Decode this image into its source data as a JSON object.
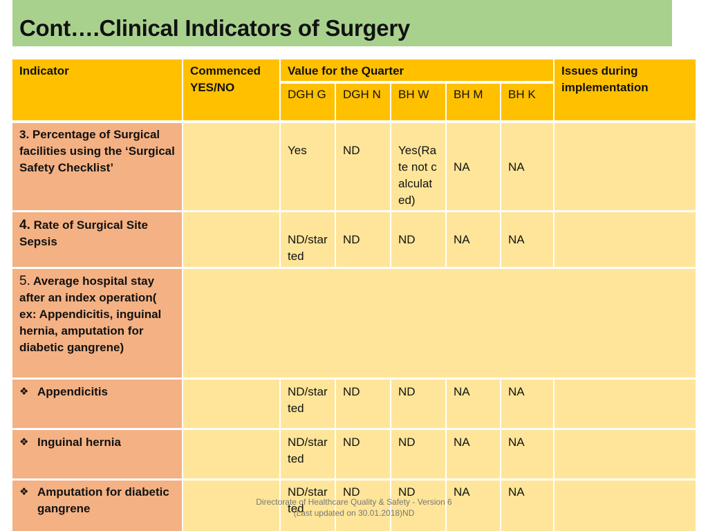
{
  "title": "Cont….Clinical Indicators of Surgery",
  "header": {
    "indicator": "Indicator",
    "commenced": "Commenced YES/NO",
    "value_quarter": "Value for the Quarter",
    "issues": "Issues during implementation",
    "sub_columns": [
      "DGH G",
      "DGH N",
      "BH W",
      "BH M",
      "BH K"
    ]
  },
  "rows": [
    {
      "num": "3.",
      "label": "Percentage of Surgical facilities using the ‘Surgical Safety Checklist’",
      "values": [
        "Yes",
        "ND",
        "Yes(Rate not calculated)",
        "NA",
        "NA"
      ]
    },
    {
      "num": "4.",
      "label": "Rate of Surgical Site Sepsis",
      "values": [
        "ND/started",
        "ND",
        "ND",
        "NA",
        "NA"
      ]
    },
    {
      "num": "5.",
      "label": "Average hospital stay after an index operation( ex: Appendicitis, inguinal hernia, amputation for diabetic gangrene)"
    },
    {
      "label": "Appendicitis",
      "values": [
        "ND/started",
        "ND",
        "ND",
        "NA",
        "NA"
      ]
    },
    {
      "label": "Inguinal hernia",
      "values": [
        "ND/started",
        "ND",
        "ND",
        "NA",
        "NA"
      ]
    },
    {
      "label": "Amputation for diabetic gangrene",
      "values": [
        "ND/started",
        "ND",
        "ND",
        "NA",
        "NA"
      ]
    }
  ],
  "footer": {
    "line1": "Directorate of Healthcare Quality & Safety - Version 6",
    "line2": "(Last updated on 30.01.2018)ND"
  },
  "icons": {
    "bullet": "diamond-bullet-icon"
  },
  "colors": {
    "title_bg": "#a9d18e",
    "header_bg": "#ffc000",
    "indicator_bg": "#f4b183",
    "value_bg": "#fee599"
  }
}
